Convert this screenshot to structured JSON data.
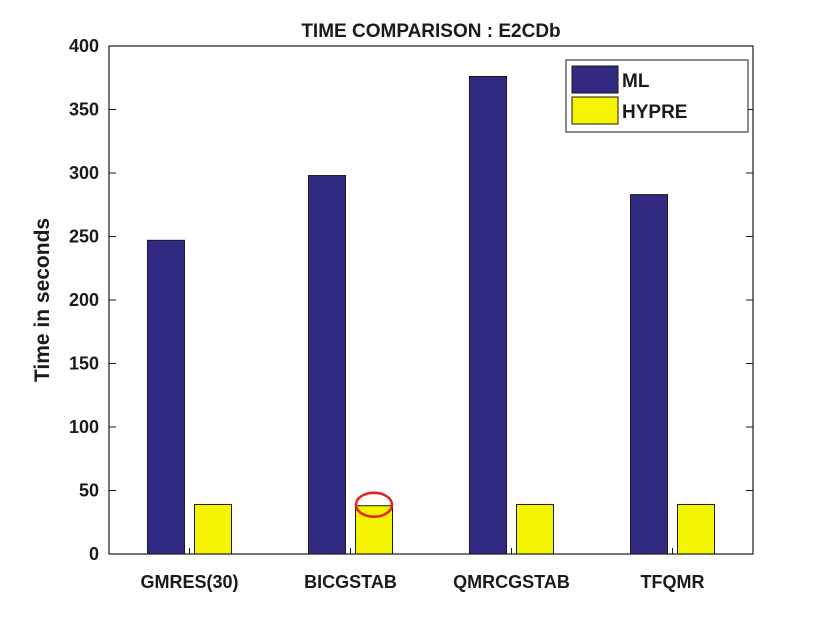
{
  "chart_data": {
    "type": "bar",
    "title": "TIME COMPARISON : E2CDb",
    "xlabel": "",
    "ylabel": "Time in seconds",
    "categories": [
      "GMRES(30)",
      "BICGSTAB",
      "QMRCGSTAB",
      "TFQMR"
    ],
    "series": [
      {
        "name": "ML",
        "color": "#312a83",
        "values": [
          247,
          298,
          376,
          283
        ]
      },
      {
        "name": "HYPRE",
        "color": "#f5f500",
        "values": [
          39,
          38,
          39,
          39
        ]
      }
    ],
    "ylim": [
      0,
      400
    ],
    "yticks": [
      0,
      50,
      100,
      150,
      200,
      250,
      300,
      350,
      400
    ],
    "grid": false,
    "legend_position": "top-right",
    "annotation": {
      "type": "red-ellipse-highlight",
      "category": "BICGSTAB",
      "series": "HYPRE",
      "color": "#e8201e"
    }
  }
}
